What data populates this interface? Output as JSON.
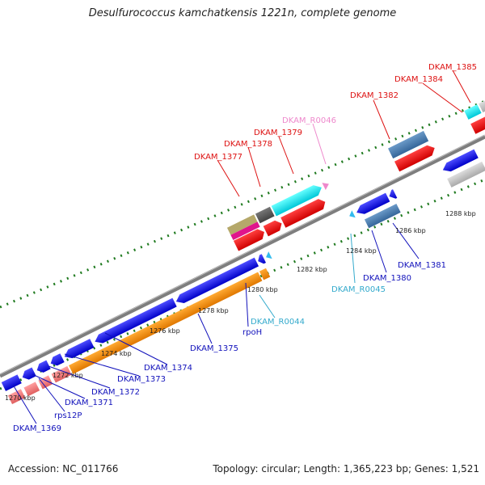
{
  "title": "Desulfurococcus kamchatkensis 1221n, complete genome",
  "accession": "Accession: NC_011766",
  "topology": "Topology: circular; Length: 1,365,223 bp; Genes: 1,521",
  "colors": {
    "backbone": "#8a8a8a",
    "tick": "#1f7a1f",
    "label_red": "#dd1111",
    "label_blue": "#1111bb",
    "label_cyan": "#33aacc",
    "label_pink": "#ee88cc"
  },
  "scale_labels": [
    "1270 kbp",
    "1272 kbp",
    "1274 kbp",
    "1276 kbp",
    "1278 kbp",
    "1280 kbp",
    "1282 kbp",
    "1284 kbp",
    "1286 kbp",
    "1288 kbp"
  ],
  "gene_labels": {
    "dkam_1385": "DKAM_1385",
    "dkam_1384": "DKAM_1384",
    "dkam_1382": "DKAM_1382",
    "dkam_r0046": "DKAM_R0046",
    "dkam_1379": "DKAM_1379",
    "dkam_1378": "DKAM_1378",
    "dkam_1377": "DKAM_1377",
    "dkam_1381": "DKAM_1381",
    "dkam_1380": "DKAM_1380",
    "dkam_r0045": "DKAM_R0045",
    "dkam_r0044": "DKAM_R0044",
    "rpoh": "rpoH",
    "dkam_1375": "DKAM_1375",
    "dkam_1374": "DKAM_1374",
    "dkam_1373": "DKAM_1373",
    "dkam_1372": "DKAM_1372",
    "dkam_1371": "DKAM_1371",
    "rps12p": "rps12P",
    "dkam_1369": "DKAM_1369"
  }
}
